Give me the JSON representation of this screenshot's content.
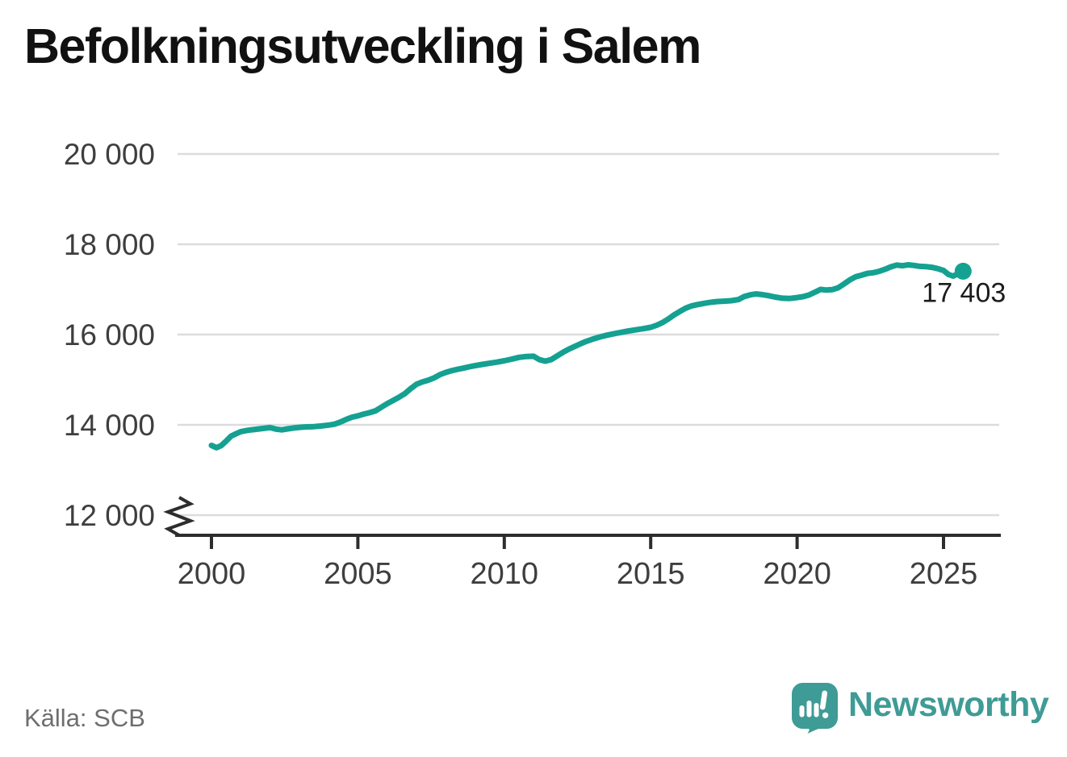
{
  "page": {
    "title": "Befolkningsutveckling i Salem",
    "source": "Källa: SCB"
  },
  "branding": {
    "wordmark": "Newsworthy",
    "icon": "newsworthy-speech-bubble-bar-chart-icon",
    "color": "#3f9b95"
  },
  "colors": {
    "background": "#ffffff",
    "line": "#14a191",
    "grid": "#dcdcdc",
    "axis": "#2d2d2d",
    "tick_text": "#3e3e3e",
    "title_text": "#111111",
    "source_text": "#6e6e6e",
    "end_label_text": "#1c1c1c"
  },
  "chart_data": {
    "type": "line",
    "title": "Befolkningsutveckling i Salem",
    "xlabel": "",
    "ylabel": "",
    "grid": "horizontal",
    "legend": "none",
    "y_axis_break": true,
    "xlim": [
      1998.8,
      2026.9
    ],
    "ylim": [
      12000,
      20000
    ],
    "x_ticks": [
      2000,
      2005,
      2010,
      2015,
      2020,
      2025
    ],
    "x_tick_labels": [
      "2000",
      "2005",
      "2010",
      "2015",
      "2020",
      "2025"
    ],
    "y_ticks": [
      12000,
      14000,
      16000,
      18000,
      20000
    ],
    "y_tick_labels": [
      "12 000",
      "14 000",
      "16 000",
      "18 000",
      "20 000"
    ],
    "end_point": {
      "x": 2025.67,
      "value": 17403,
      "label": "17 403"
    },
    "series": [
      {
        "name": "Befolkning i Salem",
        "color": "#14a191",
        "points": [
          [
            2000.0,
            13545
          ],
          [
            2000.17,
            13495
          ],
          [
            2000.33,
            13540
          ],
          [
            2000.5,
            13640
          ],
          [
            2000.67,
            13750
          ],
          [
            2000.83,
            13800
          ],
          [
            2001.0,
            13850
          ],
          [
            2001.25,
            13880
          ],
          [
            2001.5,
            13900
          ],
          [
            2001.75,
            13920
          ],
          [
            2002.0,
            13940
          ],
          [
            2002.2,
            13905
          ],
          [
            2002.4,
            13890
          ],
          [
            2002.6,
            13910
          ],
          [
            2002.8,
            13930
          ],
          [
            2003.0,
            13945
          ],
          [
            2003.25,
            13955
          ],
          [
            2003.5,
            13960
          ],
          [
            2003.75,
            13975
          ],
          [
            2004.0,
            13995
          ],
          [
            2004.2,
            14015
          ],
          [
            2004.4,
            14060
          ],
          [
            2004.6,
            14120
          ],
          [
            2004.8,
            14170
          ],
          [
            2005.0,
            14200
          ],
          [
            2005.2,
            14240
          ],
          [
            2005.4,
            14270
          ],
          [
            2005.6,
            14310
          ],
          [
            2005.8,
            14390
          ],
          [
            2006.0,
            14470
          ],
          [
            2006.2,
            14540
          ],
          [
            2006.4,
            14610
          ],
          [
            2006.6,
            14690
          ],
          [
            2006.8,
            14800
          ],
          [
            2007.0,
            14900
          ],
          [
            2007.2,
            14950
          ],
          [
            2007.4,
            14990
          ],
          [
            2007.6,
            15040
          ],
          [
            2007.8,
            15110
          ],
          [
            2008.0,
            15160
          ],
          [
            2008.2,
            15200
          ],
          [
            2008.4,
            15230
          ],
          [
            2008.6,
            15255
          ],
          [
            2008.8,
            15285
          ],
          [
            2009.0,
            15310
          ],
          [
            2009.25,
            15340
          ],
          [
            2009.5,
            15365
          ],
          [
            2009.75,
            15390
          ],
          [
            2010.0,
            15420
          ],
          [
            2010.25,
            15455
          ],
          [
            2010.5,
            15495
          ],
          [
            2010.75,
            15515
          ],
          [
            2011.0,
            15520
          ],
          [
            2011.2,
            15445
          ],
          [
            2011.4,
            15410
          ],
          [
            2011.6,
            15445
          ],
          [
            2011.8,
            15525
          ],
          [
            2012.0,
            15605
          ],
          [
            2012.2,
            15675
          ],
          [
            2012.4,
            15735
          ],
          [
            2012.6,
            15795
          ],
          [
            2012.8,
            15850
          ],
          [
            2013.0,
            15895
          ],
          [
            2013.25,
            15945
          ],
          [
            2013.5,
            15985
          ],
          [
            2013.75,
            16020
          ],
          [
            2014.0,
            16050
          ],
          [
            2014.25,
            16080
          ],
          [
            2014.5,
            16105
          ],
          [
            2014.75,
            16130
          ],
          [
            2015.0,
            16160
          ],
          [
            2015.2,
            16205
          ],
          [
            2015.4,
            16265
          ],
          [
            2015.6,
            16345
          ],
          [
            2015.8,
            16435
          ],
          [
            2016.0,
            16515
          ],
          [
            2016.2,
            16585
          ],
          [
            2016.4,
            16635
          ],
          [
            2016.6,
            16665
          ],
          [
            2016.8,
            16690
          ],
          [
            2017.0,
            16710
          ],
          [
            2017.25,
            16730
          ],
          [
            2017.5,
            16740
          ],
          [
            2017.75,
            16750
          ],
          [
            2018.0,
            16775
          ],
          [
            2018.2,
            16845
          ],
          [
            2018.4,
            16880
          ],
          [
            2018.6,
            16900
          ],
          [
            2018.8,
            16885
          ],
          [
            2019.0,
            16865
          ],
          [
            2019.25,
            16830
          ],
          [
            2019.5,
            16805
          ],
          [
            2019.75,
            16800
          ],
          [
            2020.0,
            16820
          ],
          [
            2020.2,
            16840
          ],
          [
            2020.4,
            16875
          ],
          [
            2020.6,
            16935
          ],
          [
            2020.8,
            17000
          ],
          [
            2021.0,
            16985
          ],
          [
            2021.2,
            16995
          ],
          [
            2021.4,
            17035
          ],
          [
            2021.6,
            17120
          ],
          [
            2021.8,
            17210
          ],
          [
            2022.0,
            17280
          ],
          [
            2022.2,
            17315
          ],
          [
            2022.4,
            17355
          ],
          [
            2022.6,
            17370
          ],
          [
            2022.8,
            17400
          ],
          [
            2023.0,
            17445
          ],
          [
            2023.2,
            17500
          ],
          [
            2023.4,
            17540
          ],
          [
            2023.6,
            17525
          ],
          [
            2023.8,
            17545
          ],
          [
            2024.0,
            17530
          ],
          [
            2024.2,
            17510
          ],
          [
            2024.4,
            17505
          ],
          [
            2024.6,
            17490
          ],
          [
            2024.8,
            17460
          ],
          [
            2025.0,
            17420
          ],
          [
            2025.17,
            17330
          ],
          [
            2025.33,
            17295
          ],
          [
            2025.5,
            17350
          ],
          [
            2025.67,
            17403
          ]
        ]
      }
    ]
  }
}
